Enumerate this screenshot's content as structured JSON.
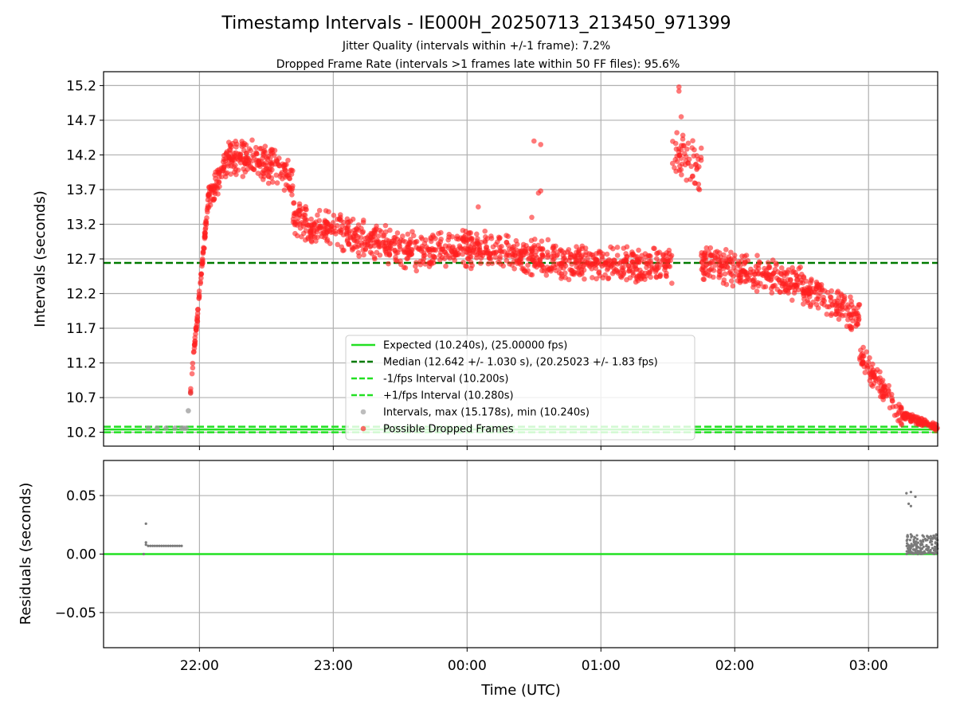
{
  "chart_data": [
    {
      "type": "scatter",
      "title": "Timestamp Intervals - IE000H_20250713_213450_971399",
      "subtitle": [
        "Jitter Quality (intervals within +/-1 frame): 7.2%",
        "Dropped Frame Rate (intervals >1 frames late within 50 FF files): 95.6%"
      ],
      "xlabel": "",
      "ylabel": "Intervals (seconds)",
      "x_axis": {
        "type": "time",
        "start": "21:17",
        "end": "03:31",
        "tick_labels": []
      },
      "ylim": [
        10.0,
        15.4
      ],
      "yticks": [
        "10.2",
        "10.7",
        "11.2",
        "11.7",
        "12.2",
        "12.7",
        "13.2",
        "13.7",
        "14.2",
        "14.7",
        "15.2"
      ],
      "grid": true,
      "reference_lines": [
        {
          "name": "Expected (10.240s), (25.00000 fps)",
          "y": 10.24,
          "style": "solid",
          "color": "#22e022"
        },
        {
          "name": "Median (12.642 +/- 1.030 s), (20.25023 +/- 1.83 fps)",
          "y": 12.642,
          "style": "dashed",
          "color": "#007a00"
        },
        {
          "name": "-1/fps Interval (10.200s)",
          "y": 10.2,
          "style": "dashed",
          "color": "#22e022"
        },
        {
          "name": "+1/fps Interval (10.280s)",
          "y": 10.28,
          "style": "dashed",
          "color": "#22e022"
        }
      ],
      "series": [
        {
          "name": "Intervals, max (15.178s), min (10.240s)",
          "color": "#9a9a9a",
          "points": [
            [
              "21:37",
              10.26
            ],
            [
              "21:41",
              10.26
            ],
            [
              "21:45",
              10.26
            ],
            [
              "21:49",
              10.26
            ],
            [
              "21:52",
              10.26
            ],
            [
              "21:53",
              10.26
            ],
            [
              "21:54",
              10.26
            ],
            [
              "21:55",
              10.51
            ],
            [
              "21:56",
              10.77
            ]
          ]
        },
        {
          "name": "Possible Dropped Frames",
          "color": "#ff2020",
          "segments": [
            {
              "start": "21:56",
              "end": "22:04",
              "y_start": 10.8,
              "y_end": 13.6,
              "spread": 0.12,
              "count": 80
            },
            {
              "start": "22:04",
              "end": "22:14",
              "y_start": 13.6,
              "y_end": 14.2,
              "spread": 0.25,
              "count": 80
            },
            {
              "start": "22:14",
              "end": "22:34",
              "y_start": 14.2,
              "y_end": 14.05,
              "spread": 0.3,
              "count": 140
            },
            {
              "start": "22:34",
              "end": "22:42",
              "y_start": 14.05,
              "y_end": 13.8,
              "spread": 0.3,
              "count": 45
            },
            {
              "start": "22:42",
              "end": "22:52",
              "y_start": 13.35,
              "y_end": 13.1,
              "spread": 0.3,
              "count": 70
            },
            {
              "start": "22:52",
              "end": "23:30",
              "y_start": 13.2,
              "y_end": 12.85,
              "spread": 0.3,
              "count": 220
            },
            {
              "start": "23:30",
              "end": "00:10",
              "y_start": 12.8,
              "y_end": 12.85,
              "spread": 0.3,
              "count": 230
            },
            {
              "start": "00:10",
              "end": "00:40",
              "y_start": 12.8,
              "y_end": 12.7,
              "spread": 0.3,
              "count": 170
            },
            {
              "start": "00:40",
              "end": "01:32",
              "y_start": 12.65,
              "y_end": 12.6,
              "spread": 0.28,
              "count": 300
            },
            {
              "start": "01:32",
              "end": "01:45",
              "y_start": 14.3,
              "y_end": 14.0,
              "spread": 0.4,
              "count": 60
            },
            {
              "start": "01:45",
              "end": "02:30",
              "y_start": 12.65,
              "y_end": 12.35,
              "spread": 0.3,
              "count": 260
            },
            {
              "start": "02:30",
              "end": "02:56",
              "y_start": 12.3,
              "y_end": 11.85,
              "spread": 0.3,
              "count": 150
            },
            {
              "start": "02:56",
              "end": "03:15",
              "y_start": 11.3,
              "y_end": 10.45,
              "spread": 0.22,
              "count": 100
            },
            {
              "start": "03:15",
              "end": "03:31",
              "y_start": 10.45,
              "y_end": 10.26,
              "spread": 0.06,
              "count": 100
            }
          ],
          "outliers": [
            [
              "00:30",
              14.4
            ],
            [
              "00:33",
              14.35
            ],
            [
              "00:32",
              13.65
            ],
            [
              "00:33",
              13.68
            ],
            [
              "00:29",
              13.3
            ],
            [
              "01:35",
              15.18
            ],
            [
              "01:35",
              15.12
            ],
            [
              "01:36",
              14.75
            ],
            [
              "00:05",
              13.45
            ],
            [
              "01:24",
              12.85
            ]
          ]
        }
      ],
      "legend": {
        "position": "bottom-center"
      }
    },
    {
      "type": "scatter",
      "title": "",
      "xlabel": "Time (UTC)",
      "ylabel": "Residuals (seconds)",
      "x_axis": {
        "type": "time",
        "start": "21:17",
        "end": "03:31",
        "tick_labels": [
          "22:00",
          "23:00",
          "00:00",
          "01:00",
          "02:00",
          "03:00"
        ]
      },
      "ylim": [
        -0.08,
        0.08
      ],
      "yticks": [
        "−0.05",
        "0.00",
        "0.05"
      ],
      "grid": true,
      "reference_lines": [
        {
          "y": 0.0,
          "style": "solid",
          "color": "#22e022"
        }
      ],
      "series": [
        {
          "color": "#7a7a7a",
          "points": [
            [
              "21:35",
              0.0
            ],
            [
              "21:36",
              0.026
            ],
            [
              "21:36",
              0.01
            ],
            [
              "21:36",
              0.008
            ],
            [
              "21:37",
              0.007
            ],
            [
              "21:38",
              0.007
            ],
            [
              "21:39",
              0.007
            ],
            [
              "21:40",
              0.007
            ],
            [
              "21:41",
              0.007
            ],
            [
              "21:42",
              0.007
            ],
            [
              "21:43",
              0.007
            ],
            [
              "21:44",
              0.007
            ],
            [
              "21:45",
              0.007
            ],
            [
              "21:46",
              0.007
            ],
            [
              "21:47",
              0.007
            ],
            [
              "21:48",
              0.007
            ],
            [
              "21:49",
              0.007
            ],
            [
              "21:50",
              0.007
            ],
            [
              "21:51",
              0.007
            ],
            [
              "21:52",
              0.007
            ],
            [
              "03:17",
              0.052
            ],
            [
              "03:19",
              0.053
            ],
            [
              "03:21",
              0.049
            ],
            [
              "03:18",
              0.043
            ],
            [
              "03:19",
              0.041
            ]
          ],
          "cluster": {
            "start": "03:17",
            "end": "03:31",
            "y_min": 0.0,
            "y_max": 0.017,
            "count": 160
          }
        }
      ]
    }
  ]
}
